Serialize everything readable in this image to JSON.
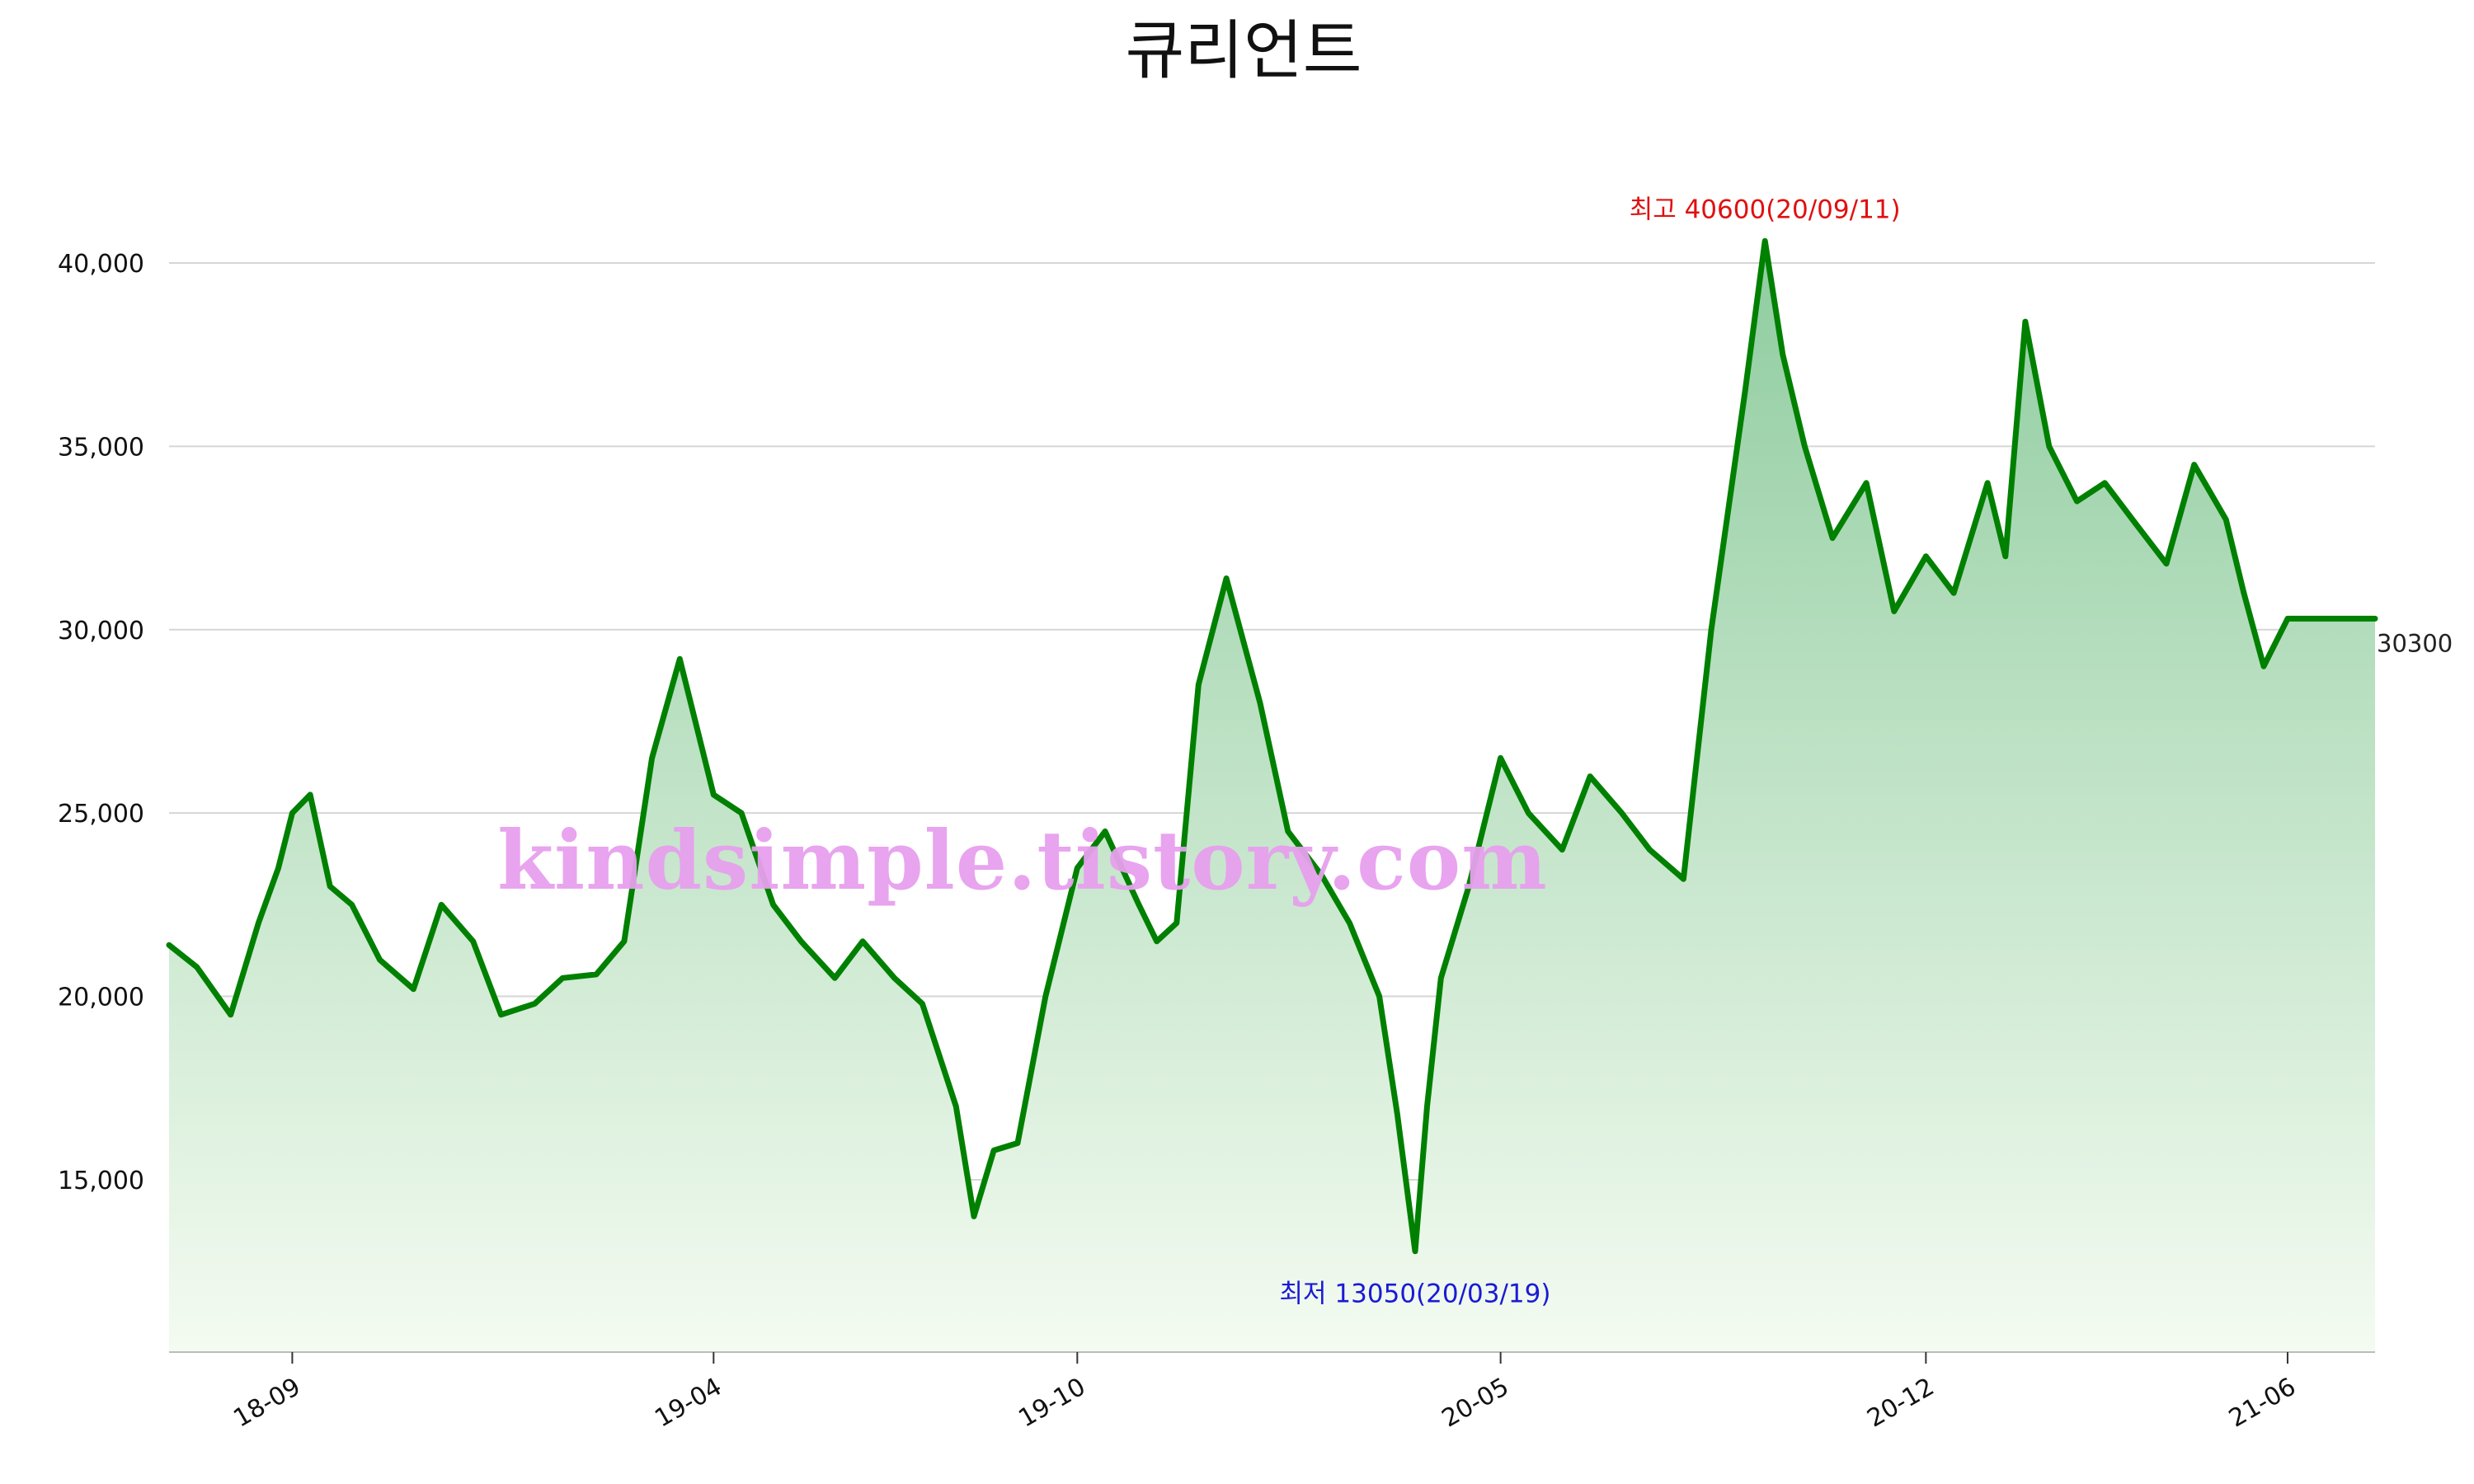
{
  "chart_data": {
    "type": "area",
    "title": "큐리언트",
    "xlabel": "",
    "ylabel": "",
    "ylim": [
      10300,
      42000
    ],
    "yticks": [
      15000,
      20000,
      25000,
      30000,
      35000,
      40000
    ],
    "ytick_labels": [
      "15,000",
      "20,000",
      "25,000",
      "30,000",
      "35,000",
      "40,000"
    ],
    "x_range": [
      "2018-07-01",
      "2021-07-15"
    ],
    "xticks": [
      "2018-09-01",
      "2019-04-01",
      "2019-10-01",
      "2020-05-01",
      "2020-12-01",
      "2021-06-01"
    ],
    "xtick_labels": [
      "18-09",
      "19-04",
      "19-10",
      "20-05",
      "20-12",
      "21-06"
    ],
    "grid": "horizontal",
    "line_color": "#008000",
    "fill_top_color": "#8fcc9f",
    "fill_bottom_color": "#f4fbf1",
    "series": [
      {
        "x": [
          "2018-07-01",
          "2018-07-15",
          "2018-08-01",
          "2018-08-15",
          "2018-08-25",
          "2018-09-01",
          "2018-09-10",
          "2018-09-20",
          "2018-10-01",
          "2018-10-15",
          "2018-11-01",
          "2018-11-15",
          "2018-12-01",
          "2018-12-15",
          "2019-01-01",
          "2019-01-15",
          "2019-02-01",
          "2019-02-15",
          "2019-03-01",
          "2019-03-15",
          "2019-04-01",
          "2019-04-15",
          "2019-05-01",
          "2019-05-15",
          "2019-06-01",
          "2019-06-15",
          "2019-07-01",
          "2019-07-15",
          "2019-08-01",
          "2019-08-10",
          "2019-08-20",
          "2019-09-01",
          "2019-09-15",
          "2019-10-01",
          "2019-10-15",
          "2019-11-01",
          "2019-11-10",
          "2019-11-20",
          "2019-12-01",
          "2019-12-15",
          "2020-01-01",
          "2020-01-15",
          "2020-02-01",
          "2020-02-15",
          "2020-03-01",
          "2020-03-10",
          "2020-03-19",
          "2020-03-25",
          "2020-04-01",
          "2020-04-15",
          "2020-05-01",
          "2020-05-15",
          "2020-06-01",
          "2020-06-15",
          "2020-07-01",
          "2020-07-15",
          "2020-08-01",
          "2020-08-15",
          "2020-09-01",
          "2020-09-11",
          "2020-09-20",
          "2020-10-01",
          "2020-10-15",
          "2020-11-01",
          "2020-11-15",
          "2020-12-01",
          "2020-12-15",
          "2021-01-01",
          "2021-01-10",
          "2021-01-20",
          "2021-02-01",
          "2021-02-15",
          "2021-03-01",
          "2021-03-15",
          "2021-04-01",
          "2021-04-15",
          "2021-05-01",
          "2021-05-10",
          "2021-05-20",
          "2021-06-01",
          "2021-06-15",
          "2021-07-01",
          "2021-07-15"
        ],
        "values": [
          21400,
          20800,
          19500,
          22000,
          23500,
          25000,
          25500,
          23000,
          22500,
          21000,
          20200,
          22500,
          21500,
          19500,
          19800,
          20500,
          20600,
          21500,
          26500,
          29200,
          25500,
          25000,
          22500,
          21500,
          20500,
          21500,
          20500,
          19800,
          17000,
          14000,
          15800,
          16000,
          20000,
          23500,
          24500,
          22500,
          21500,
          22000,
          28500,
          31400,
          28000,
          24500,
          23300,
          22000,
          20000,
          16800,
          13050,
          17000,
          20500,
          23000,
          26500,
          25000,
          24000,
          26000,
          25000,
          24000,
          23200,
          30000,
          36500,
          40600,
          37500,
          35000,
          32500,
          34000,
          30500,
          32000,
          31000,
          34000,
          32000,
          38400,
          35000,
          33500,
          34000,
          33000,
          31800,
          34500,
          33000,
          31000,
          29000,
          30300,
          30300,
          30300,
          30300
        ]
      }
    ],
    "annotations": {
      "max": {
        "label": "최고 40600(20/09/11)",
        "x": "2020-09-11",
        "y": 40600
      },
      "min": {
        "label": "최저 13050(20/03/19)",
        "x": "2020-03-19",
        "y": 13050
      },
      "last": {
        "label": "30300",
        "x": "2021-07-15",
        "y": 30300
      }
    },
    "watermark": "kindsimple.tistory.com"
  }
}
